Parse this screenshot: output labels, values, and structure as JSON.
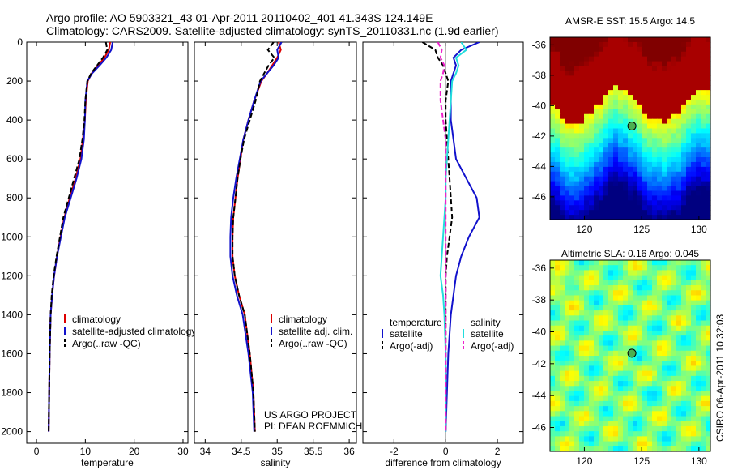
{
  "title_line1": "Argo profile: AO 5903321_43 01-Apr-2011 20110402_401 41.343S 124.149E",
  "title_line2": "Climatology: CARS2009. Satellite-adjusted climatology: synTS_20110331.nc (1.9d earlier)",
  "side_label": "CSIRO 06-Apr-2011 10:32:03",
  "credit": [
    "US ARGO PROJECT",
    "PI: DEAN ROEMMICH"
  ],
  "colors": {
    "red": "#dd0000",
    "blue": "#1111cc",
    "black": "#000000",
    "cyan": "#22dddd",
    "magenta": "#ee22cc"
  },
  "chart_data": [
    {
      "type": "line",
      "id": "temp",
      "xlabel": "temperature",
      "xlim": [
        -2,
        31
      ],
      "ylim": [
        0,
        2060
      ],
      "xticks": [
        0,
        10,
        20,
        30
      ],
      "yticks": [
        0,
        200,
        400,
        600,
        800,
        1000,
        1200,
        1400,
        1600,
        1800,
        2000
      ],
      "y_reversed": true,
      "legend": [
        "climatology",
        "satellite-adjusted climatology",
        "Argo(..raw -QC)"
      ],
      "series": [
        {
          "name": "climatology",
          "color": "red",
          "dash": "",
          "x": [
            15.1,
            14.8,
            13.9,
            12.6,
            11.3,
            10.5,
            10.1,
            9.9,
            9.5,
            9.0,
            8.0,
            6.8,
            5.7,
            4.9,
            4.2,
            3.6,
            3.2,
            2.9,
            2.7,
            2.6,
            2.5
          ],
          "y": [
            0,
            40,
            80,
            120,
            160,
            200,
            300,
            400,
            500,
            600,
            700,
            800,
            900,
            1000,
            1100,
            1200,
            1300,
            1400,
            1600,
            1800,
            2000
          ]
        },
        {
          "name": "satellite-adjusted climatology",
          "color": "blue",
          "dash": "",
          "x": [
            15.6,
            15.3,
            14.3,
            12.9,
            11.4,
            10.4,
            10.0,
            9.9,
            9.7,
            9.2,
            8.2,
            7.0,
            5.8,
            5.0,
            4.2,
            3.6,
            3.2,
            2.9,
            2.7,
            2.6,
            2.5
          ],
          "y": [
            0,
            40,
            80,
            120,
            160,
            200,
            300,
            400,
            500,
            600,
            700,
            800,
            900,
            1000,
            1100,
            1200,
            1300,
            1400,
            1600,
            1800,
            2000
          ]
        },
        {
          "name": "Argo(..raw -QC)",
          "color": "black",
          "dash": "6,3",
          "x": [
            14.2,
            14.5,
            13.6,
            12.4,
            11.2,
            10.4,
            10.0,
            9.8,
            9.4,
            8.8,
            7.7,
            6.6,
            5.5,
            4.8,
            4.1,
            3.5,
            3.1,
            2.9,
            2.7,
            2.6,
            2.5
          ],
          "y": [
            0,
            40,
            80,
            120,
            160,
            200,
            300,
            400,
            500,
            600,
            700,
            800,
            900,
            1000,
            1100,
            1200,
            1300,
            1400,
            1600,
            1800,
            2000
          ]
        }
      ]
    },
    {
      "type": "line",
      "id": "sal",
      "xlabel": "salinity",
      "xlim": [
        33.85,
        36.1
      ],
      "ylim": [
        0,
        2060
      ],
      "xticks": [
        34,
        34.5,
        35,
        35.5,
        36
      ],
      "y_reversed": true,
      "legend": [
        "climatology",
        "satellite adj. clim.",
        "Argo(..raw -QC)"
      ],
      "series": [
        {
          "name": "climatology",
          "color": "red",
          "dash": "",
          "x": [
            35.02,
            35.05,
            35.0,
            34.93,
            34.86,
            34.78,
            34.68,
            34.6,
            34.53,
            34.49,
            34.45,
            34.42,
            34.39,
            34.38,
            34.38,
            34.41,
            34.47,
            34.55,
            34.62,
            34.67,
            34.69
          ],
          "y": [
            0,
            40,
            80,
            120,
            160,
            200,
            300,
            400,
            500,
            600,
            700,
            800,
            900,
            1000,
            1100,
            1200,
            1300,
            1400,
            1600,
            1800,
            2000
          ]
        },
        {
          "name": "satellite adj. clim.",
          "color": "blue",
          "dash": "",
          "x": [
            35.06,
            35.0,
            35.02,
            34.95,
            34.86,
            34.77,
            34.68,
            34.6,
            34.53,
            34.48,
            34.43,
            34.39,
            34.36,
            34.35,
            34.35,
            34.38,
            34.44,
            34.52,
            34.6,
            34.66,
            34.68
          ],
          "y": [
            0,
            40,
            80,
            120,
            160,
            200,
            300,
            400,
            500,
            600,
            700,
            800,
            900,
            1000,
            1100,
            1200,
            1300,
            1400,
            1600,
            1800,
            2000
          ]
        },
        {
          "name": "Argo(..raw -QC)",
          "color": "black",
          "dash": "6,3",
          "x": [
            34.95,
            34.87,
            34.96,
            34.88,
            34.82,
            34.76,
            34.7,
            34.62,
            34.54,
            34.49,
            34.45,
            34.42,
            34.39,
            34.38,
            34.38,
            34.41,
            34.47,
            34.55,
            34.62,
            34.67,
            34.69
          ],
          "y": [
            0,
            40,
            80,
            120,
            160,
            200,
            300,
            400,
            500,
            600,
            700,
            800,
            900,
            1000,
            1100,
            1200,
            1300,
            1400,
            1600,
            1800,
            2000
          ]
        }
      ]
    },
    {
      "type": "line",
      "id": "diff",
      "xlabel": "difference from climatology",
      "xlim": [
        -3.2,
        3.0
      ],
      "ylim": [
        0,
        2060
      ],
      "xticks": [
        -2,
        0,
        2
      ],
      "y_reversed": true,
      "legend_headers": [
        "temperature",
        "salinity"
      ],
      "legend": [
        "satellite",
        "Argo(-adj)",
        "satellite",
        "Argo(-adj)"
      ],
      "series": [
        {
          "name": "satellite",
          "color": "blue",
          "dash": "",
          "x": [
            1.3,
            0.6,
            0.3,
            0.4,
            0.3,
            0.2,
            0.2,
            0.2,
            0.3,
            0.4,
            0.8,
            1.2,
            1.3,
            0.9,
            0.6,
            0.4,
            0.3,
            0.2,
            0.1,
            0.05,
            0.0
          ],
          "y": [
            0,
            40,
            80,
            120,
            160,
            200,
            300,
            400,
            500,
            600,
            700,
            800,
            900,
            1000,
            1100,
            1200,
            1300,
            1400,
            1600,
            1800,
            2000
          ]
        },
        {
          "name": "Argo(-adj)",
          "color": "black",
          "dash": "6,3",
          "x": [
            -0.9,
            -0.4,
            -0.3,
            -0.1,
            0.0,
            0.1,
            0.0,
            0.0,
            0.05,
            0.1,
            0.15,
            0.2,
            0.25,
            0.15,
            0.05,
            0.0,
            0.0,
            0.0,
            0.0,
            0.0,
            0.0
          ],
          "y": [
            0,
            40,
            80,
            120,
            160,
            200,
            300,
            400,
            500,
            600,
            700,
            800,
            900,
            1000,
            1100,
            1200,
            1300,
            1400,
            1600,
            1800,
            2000
          ]
        },
        {
          "name": "satellite",
          "color": "cyan",
          "dash": "",
          "x": [
            0.6,
            0.8,
            0.4,
            0.5,
            0.4,
            0.25,
            0.2,
            0.15,
            0.1,
            0.05,
            0.0,
            0.0,
            -0.05,
            -0.1,
            -0.15,
            -0.2,
            -0.1,
            -0.05,
            0.0,
            0.0,
            0.0
          ],
          "y": [
            0,
            40,
            80,
            120,
            160,
            200,
            300,
            400,
            500,
            600,
            700,
            800,
            900,
            1000,
            1100,
            1200,
            1300,
            1400,
            1600,
            1800,
            2000
          ]
        },
        {
          "name": "Argo(-adj)",
          "color": "magenta",
          "dash": "6,3",
          "x": [
            -0.3,
            -0.15,
            -0.2,
            -0.05,
            -0.1,
            -0.2,
            -0.2,
            -0.1,
            0.0,
            0.0,
            0.0,
            0.0,
            0.0,
            0.0,
            0.0,
            0.0,
            0.0,
            0.0,
            0.0,
            0.0,
            0.0
          ],
          "y": [
            0,
            40,
            80,
            120,
            160,
            200,
            300,
            400,
            500,
            600,
            700,
            800,
            900,
            1000,
            1100,
            1200,
            1300,
            1400,
            1600,
            1800,
            2000
          ]
        }
      ]
    },
    {
      "type": "heatmap",
      "id": "sst",
      "title": "AMSR-E SST: 15.5 Argo: 14.5",
      "xlim": [
        117,
        131
      ],
      "ylim": [
        -47.5,
        -35.5
      ],
      "xticks": [
        120,
        125,
        130
      ],
      "yticks": [
        -36,
        -38,
        -40,
        -42,
        -44,
        -46
      ],
      "marker": {
        "lon": 124.149,
        "lat": -41.343
      }
    },
    {
      "type": "heatmap",
      "id": "sla",
      "title": "Altimetric SLA: 0.16 Argo: 0.045",
      "xlim": [
        117,
        131
      ],
      "ylim": [
        -47.5,
        -35.5
      ],
      "xticks": [
        120,
        125,
        130
      ],
      "yticks": [
        -36,
        -38,
        -40,
        -42,
        -44,
        -46
      ],
      "marker": {
        "lon": 124.149,
        "lat": -41.343
      }
    }
  ]
}
